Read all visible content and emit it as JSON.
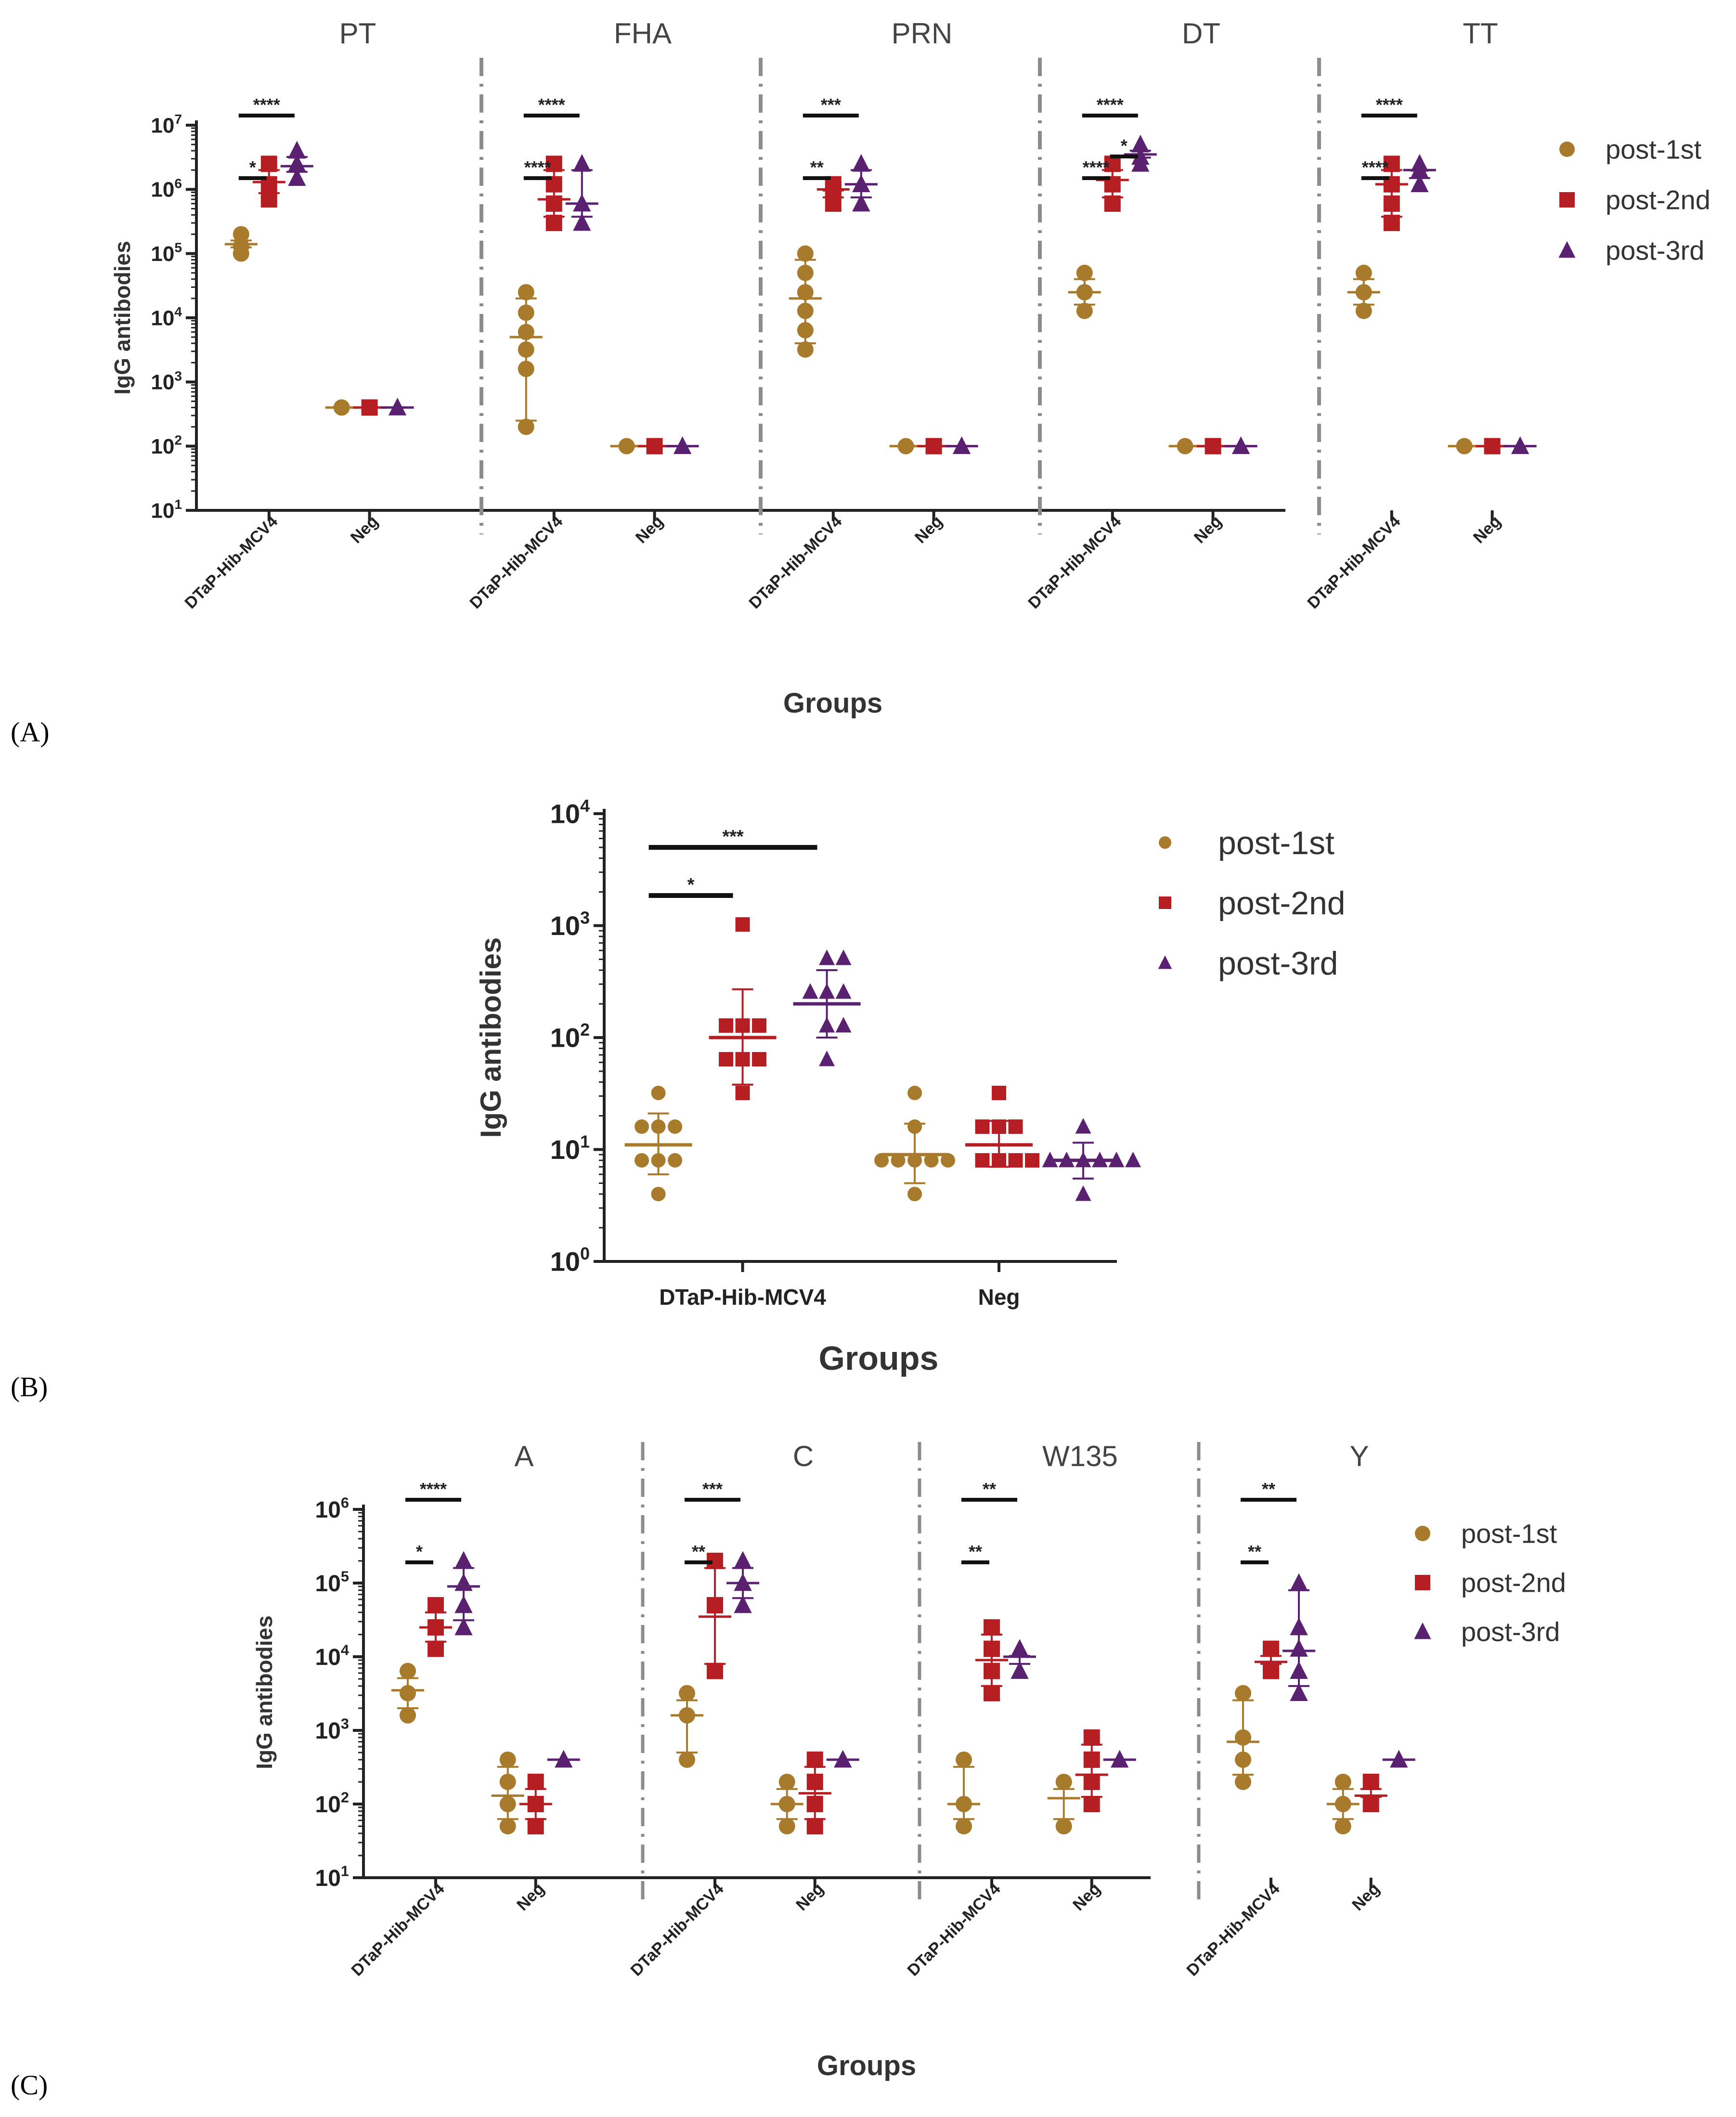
{
  "colors": {
    "post_1st": "#a87a2c",
    "post_2nd": "#b51f24",
    "post_3rd": "#5a2171",
    "axis": "#222222",
    "divider": "#8c8c8c"
  },
  "chart_data": [
    {
      "panel": "(A)",
      "type": "scatter",
      "scale": "log10",
      "ylabel": "IgG antibodies",
      "xlabel": "Groups",
      "ylim": [
        10,
        10000000
      ],
      "yticks": [
        "10^1",
        "10^2",
        "10^3",
        "10^4",
        "10^5",
        "10^6",
        "10^7"
      ],
      "legend": {
        "position": "right",
        "entries": [
          "post-1st",
          "post-2nd",
          "post-3rd"
        ]
      },
      "categories": [
        "DTaP-Hib-MCV4",
        "Neg"
      ],
      "subplots": [
        {
          "title": "PT",
          "groups": [
            {
              "category": "DTaP-Hib-MCV4",
              "post_1st": {
                "points": [
                  100000,
                  130000,
                  200000
                ],
                "mean": 140000
              },
              "post_2nd": {
                "points": [
                  700000,
                  1200000,
                  2500000
                ],
                "mean": 1300000
              },
              "post_3rd": {
                "points": [
                  1500000,
                  2500000,
                  4000000
                ],
                "mean": 2300000
              }
            },
            {
              "category": "Neg",
              "post_1st": {
                "points": [
                  400
                ],
                "mean": 400
              },
              "post_2nd": {
                "points": [
                  400
                ],
                "mean": 400
              },
              "post_3rd": {
                "points": [
                  400
                ],
                "mean": 400
              }
            }
          ],
          "significance": [
            {
              "label": "*",
              "from": "post_1st",
              "to": "post_2nd"
            },
            {
              "label": "****",
              "from": "post_1st",
              "to": "post_3rd"
            }
          ]
        },
        {
          "title": "FHA",
          "groups": [
            {
              "category": "DTaP-Hib-MCV4",
              "post_1st": {
                "points": [
                  200,
                  1600,
                  3200,
                  6000,
                  12000,
                  25000
                ],
                "mean": 5000
              },
              "post_2nd": {
                "points": [
                  300000,
                  600000,
                  1200000,
                  2500000
                ],
                "mean": 700000
              },
              "post_3rd": {
                "points": [
                  300000,
                  600000,
                  2500000
                ],
                "mean": 600000
              }
            },
            {
              "category": "Neg",
              "post_1st": {
                "points": [
                  100
                ],
                "mean": 100
              },
              "post_2nd": {
                "points": [
                  100
                ],
                "mean": 100
              },
              "post_3rd": {
                "points": [
                  100
                ],
                "mean": 100
              }
            }
          ],
          "significance": [
            {
              "label": "****",
              "from": "post_1st",
              "to": "post_2nd"
            },
            {
              "label": "****",
              "from": "post_1st",
              "to": "post_3rd"
            }
          ]
        },
        {
          "title": "PRN",
          "groups": [
            {
              "category": "DTaP-Hib-MCV4",
              "post_1st": {
                "points": [
                  3200,
                  6400,
                  12800,
                  25000,
                  50000,
                  100000
                ],
                "mean": 20000
              },
              "post_2nd": {
                "points": [
                  600000,
                  1000000,
                  1200000
                ],
                "mean": 1000000
              },
              "post_3rd": {
                "points": [
                  600000,
                  1200000,
                  2500000
                ],
                "mean": 1200000
              }
            },
            {
              "category": "Neg",
              "post_1st": {
                "points": [
                  100
                ],
                "mean": 100
              },
              "post_2nd": {
                "points": [
                  100
                ],
                "mean": 100
              },
              "post_3rd": {
                "points": [
                  100
                ],
                "mean": 100
              }
            }
          ],
          "significance": [
            {
              "label": "**",
              "from": "post_1st",
              "to": "post_2nd"
            },
            {
              "label": "***",
              "from": "post_1st",
              "to": "post_3rd"
            }
          ]
        },
        {
          "title": "DT",
          "groups": [
            {
              "category": "DTaP-Hib-MCV4",
              "post_1st": {
                "points": [
                  12800,
                  25000,
                  50000
                ],
                "mean": 25000
              },
              "post_2nd": {
                "points": [
                  600000,
                  1200000,
                  2500000
                ],
                "mean": 1400000
              },
              "post_3rd": {
                "points": [
                  2500000,
                  3200000,
                  5000000
                ],
                "mean": 3500000
              }
            },
            {
              "category": "Neg",
              "post_1st": {
                "points": [
                  100
                ],
                "mean": 100
              },
              "post_2nd": {
                "points": [
                  100
                ],
                "mean": 100
              },
              "post_3rd": {
                "points": [
                  100
                ],
                "mean": 100
              }
            }
          ],
          "significance": [
            {
              "label": "****",
              "from": "post_1st",
              "to": "post_2nd"
            },
            {
              "label": "*",
              "from": "post_2nd",
              "to": "post_3rd"
            },
            {
              "label": "****",
              "from": "post_1st",
              "to": "post_3rd"
            }
          ]
        },
        {
          "title": "TT",
          "groups": [
            {
              "category": "DTaP-Hib-MCV4",
              "post_1st": {
                "points": [
                  12800,
                  25000,
                  50000
                ],
                "mean": 25000
              },
              "post_2nd": {
                "points": [
                  300000,
                  600000,
                  1200000,
                  2500000
                ],
                "mean": 1200000
              },
              "post_3rd": {
                "points": [
                  1200000,
                  2000000,
                  2500000
                ],
                "mean": 2000000
              }
            },
            {
              "category": "Neg",
              "post_1st": {
                "points": [
                  100
                ],
                "mean": 100
              },
              "post_2nd": {
                "points": [
                  100
                ],
                "mean": 100
              },
              "post_3rd": {
                "points": [
                  100
                ],
                "mean": 100
              }
            }
          ],
          "significance": [
            {
              "label": "****",
              "from": "post_1st",
              "to": "post_2nd"
            },
            {
              "label": "****",
              "from": "post_1st",
              "to": "post_3rd"
            }
          ]
        }
      ]
    },
    {
      "panel": "(B)",
      "type": "scatter",
      "scale": "log10",
      "ylabel": "IgG antibodies",
      "xlabel": "Groups",
      "ylim": [
        1,
        10000
      ],
      "yticks": [
        "10^0",
        "10^1",
        "10^2",
        "10^3",
        "10^4"
      ],
      "legend": {
        "position": "right",
        "entries": [
          "post-1st",
          "post-2nd",
          "post-3rd"
        ]
      },
      "categories": [
        "DTaP-Hib-MCV4",
        "Neg"
      ],
      "subplots": [
        {
          "title": "",
          "groups": [
            {
              "category": "DTaP-Hib-MCV4",
              "post_1st": {
                "points": [
                  4,
                  8,
                  8,
                  16,
                  16,
                  32,
                  8,
                  16
                ],
                "mean": 11,
                "sd": [
                  6,
                  21
                ]
              },
              "post_2nd": {
                "points": [
                  32,
                  64,
                  64,
                  64,
                  128,
                  128,
                  128,
                  1024
                ],
                "mean": 100,
                "sd": [
                  38,
                  270
                ]
              },
              "post_3rd": {
                "points": [
                  64,
                  128,
                  128,
                  256,
                  256,
                  512,
                  512,
                  256
                ],
                "mean": 200,
                "sd": [
                  100,
                  400
                ]
              }
            },
            {
              "category": "Neg",
              "post_1st": {
                "points": [
                  4,
                  8,
                  8,
                  8,
                  8,
                  16,
                  32,
                  8
                ],
                "mean": 9,
                "sd": [
                  5,
                  17
                ]
              },
              "post_2nd": {
                "points": [
                  8,
                  8,
                  8,
                  8,
                  16,
                  16,
                  16,
                  32
                ],
                "mean": 11,
                "sd": [
                  7,
                  18
                ]
              },
              "post_3rd": {
                "points": [
                  4,
                  8,
                  8,
                  8,
                  8,
                  8,
                  8,
                  16
                ],
                "mean": 8,
                "sd": [
                  5.5,
                  11.5
                ]
              }
            }
          ],
          "significance": [
            {
              "label": "*",
              "from": "post_1st",
              "to": "post_2nd"
            },
            {
              "label": "***",
              "from": "post_1st",
              "to": "post_3rd"
            }
          ]
        }
      ]
    },
    {
      "panel": "(C)",
      "type": "scatter",
      "scale": "log10",
      "ylabel": "IgG antibodies",
      "xlabel": "Groups",
      "ylim": [
        10,
        1000000
      ],
      "yticks": [
        "10^1",
        "10^2",
        "10^3",
        "10^4",
        "10^5",
        "10^6"
      ],
      "legend": {
        "position": "right",
        "entries": [
          "post-1st",
          "post-2nd",
          "post-3rd"
        ]
      },
      "categories": [
        "DTaP-Hib-MCV4",
        "Neg"
      ],
      "subplots": [
        {
          "title": "A",
          "groups": [
            {
              "category": "DTaP-Hib-MCV4",
              "post_1st": {
                "points": [
                  1600,
                  3200,
                  6400
                ],
                "mean": 3500
              },
              "post_2nd": {
                "points": [
                  12800,
                  25000,
                  50000
                ],
                "mean": 25000
              },
              "post_3rd": {
                "points": [
                  25000,
                  50000,
                  100000,
                  200000
                ],
                "mean": 90000
              }
            },
            {
              "category": "Neg",
              "post_1st": {
                "points": [
                  50,
                  100,
                  200,
                  400
                ],
                "mean": 130
              },
              "post_2nd": {
                "points": [
                  50,
                  100,
                  200
                ],
                "mean": 100
              },
              "post_3rd": {
                "points": [
                  400
                ],
                "mean": 400
              }
            }
          ],
          "significance": [
            {
              "label": "*",
              "from": "post_1st",
              "to": "post_2nd"
            },
            {
              "label": "****",
              "from": "post_1st",
              "to": "post_3rd"
            }
          ]
        },
        {
          "title": "C",
          "groups": [
            {
              "category": "DTaP-Hib-MCV4",
              "post_1st": {
                "points": [
                  400,
                  1600,
                  3200
                ],
                "mean": 1600
              },
              "post_2nd": {
                "points": [
                  6400,
                  50000,
                  200000
                ],
                "mean": 35000
              },
              "post_3rd": {
                "points": [
                  50000,
                  100000,
                  200000
                ],
                "mean": 100000
              }
            },
            {
              "category": "Neg",
              "post_1st": {
                "points": [
                  50,
                  100,
                  200
                ],
                "mean": 100
              },
              "post_2nd": {
                "points": [
                  50,
                  100,
                  200,
                  400
                ],
                "mean": 140
              },
              "post_3rd": {
                "points": [
                  400
                ],
                "mean": 400
              }
            }
          ],
          "significance": [
            {
              "label": "**",
              "from": "post_1st",
              "to": "post_2nd"
            },
            {
              "label": "***",
              "from": "post_1st",
              "to": "post_3rd"
            }
          ]
        },
        {
          "title": "W135",
          "groups": [
            {
              "category": "DTaP-Hib-MCV4",
              "post_1st": {
                "points": [
                  50,
                  100,
                  400
                ],
                "mean": 100
              },
              "post_2nd": {
                "points": [
                  3200,
                  6400,
                  12800,
                  25000
                ],
                "mean": 9000
              },
              "post_3rd": {
                "points": [
                  6400,
                  12800
                ],
                "mean": 10000
              }
            },
            {
              "category": "Neg",
              "post_1st": {
                "points": [
                  50,
                  200
                ],
                "mean": 120
              },
              "post_2nd": {
                "points": [
                  100,
                  200,
                  400,
                  800
                ],
                "mean": 250
              },
              "post_3rd": {
                "points": [
                  400
                ],
                "mean": 400
              }
            }
          ],
          "significance": [
            {
              "label": "**",
              "from": "post_1st",
              "to": "post_2nd"
            },
            {
              "label": "**",
              "from": "post_1st",
              "to": "post_3rd"
            }
          ]
        },
        {
          "title": "Y",
          "groups": [
            {
              "category": "DTaP-Hib-MCV4",
              "post_1st": {
                "points": [
                  200,
                  400,
                  800,
                  3200
                ],
                "mean": 700
              },
              "post_2nd": {
                "points": [
                  6400,
                  12800
                ],
                "mean": 8500
              },
              "post_3rd": {
                "points": [
                  3200,
                  6400,
                  12800,
                  25000,
                  100000
                ],
                "mean": 12000
              }
            },
            {
              "category": "Neg",
              "post_1st": {
                "points": [
                  50,
                  100,
                  200
                ],
                "mean": 100
              },
              "post_2nd": {
                "points": [
                  100,
                  200
                ],
                "mean": 130
              },
              "post_3rd": {
                "points": [
                  400
                ],
                "mean": 400
              }
            }
          ],
          "significance": [
            {
              "label": "**",
              "from": "post_1st",
              "to": "post_2nd"
            },
            {
              "label": "**",
              "from": "post_1st",
              "to": "post_3rd"
            }
          ]
        }
      ]
    }
  ]
}
